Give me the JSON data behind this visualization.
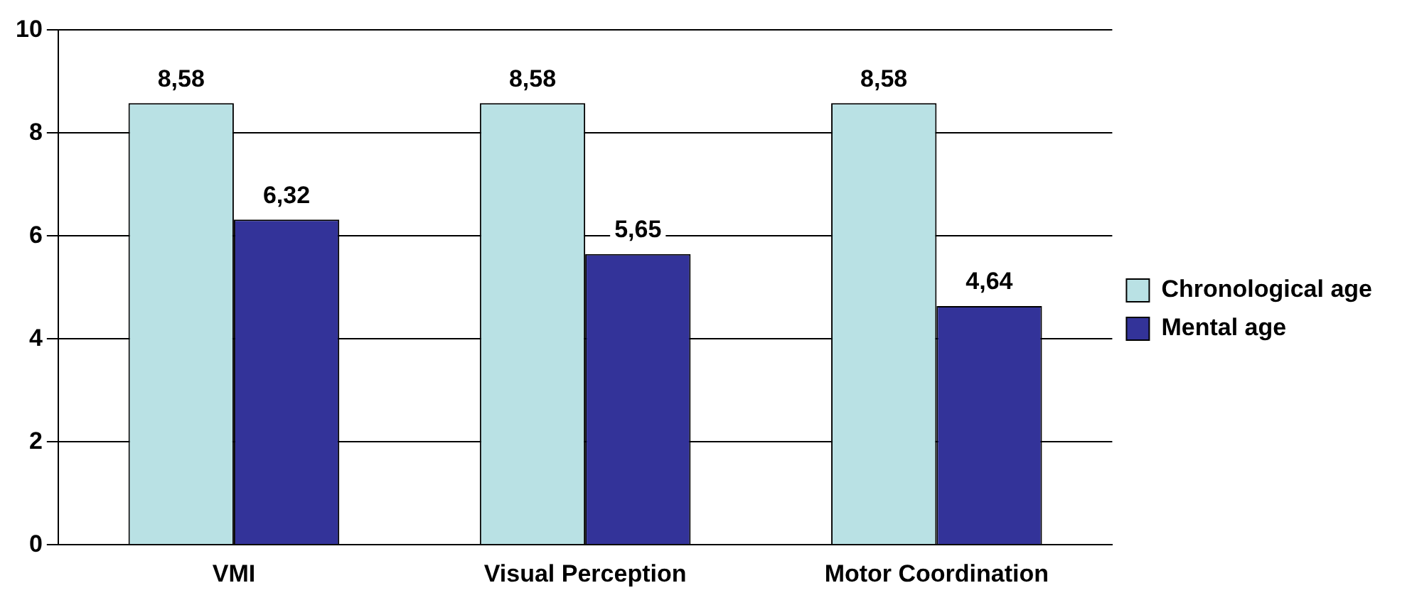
{
  "chart_data": {
    "type": "bar",
    "categories": [
      "VMI",
      "Visual Perception",
      "Motor Coordination"
    ],
    "series": [
      {
        "name": "Chronological age",
        "color": "#b9e1e4",
        "values": [
          8.58,
          8.58,
          8.58
        ],
        "value_labels": [
          "8,58",
          "8,58",
          "8,58"
        ]
      },
      {
        "name": "Mental age",
        "color": "#333399",
        "values": [
          6.32,
          5.65,
          4.64
        ],
        "value_labels": [
          "6,32",
          "5,65",
          "4,64"
        ]
      }
    ],
    "ylim": [
      0,
      10
    ],
    "yticks": [
      0,
      2,
      4,
      6,
      8,
      10
    ],
    "grid": "y",
    "legend": "right"
  }
}
